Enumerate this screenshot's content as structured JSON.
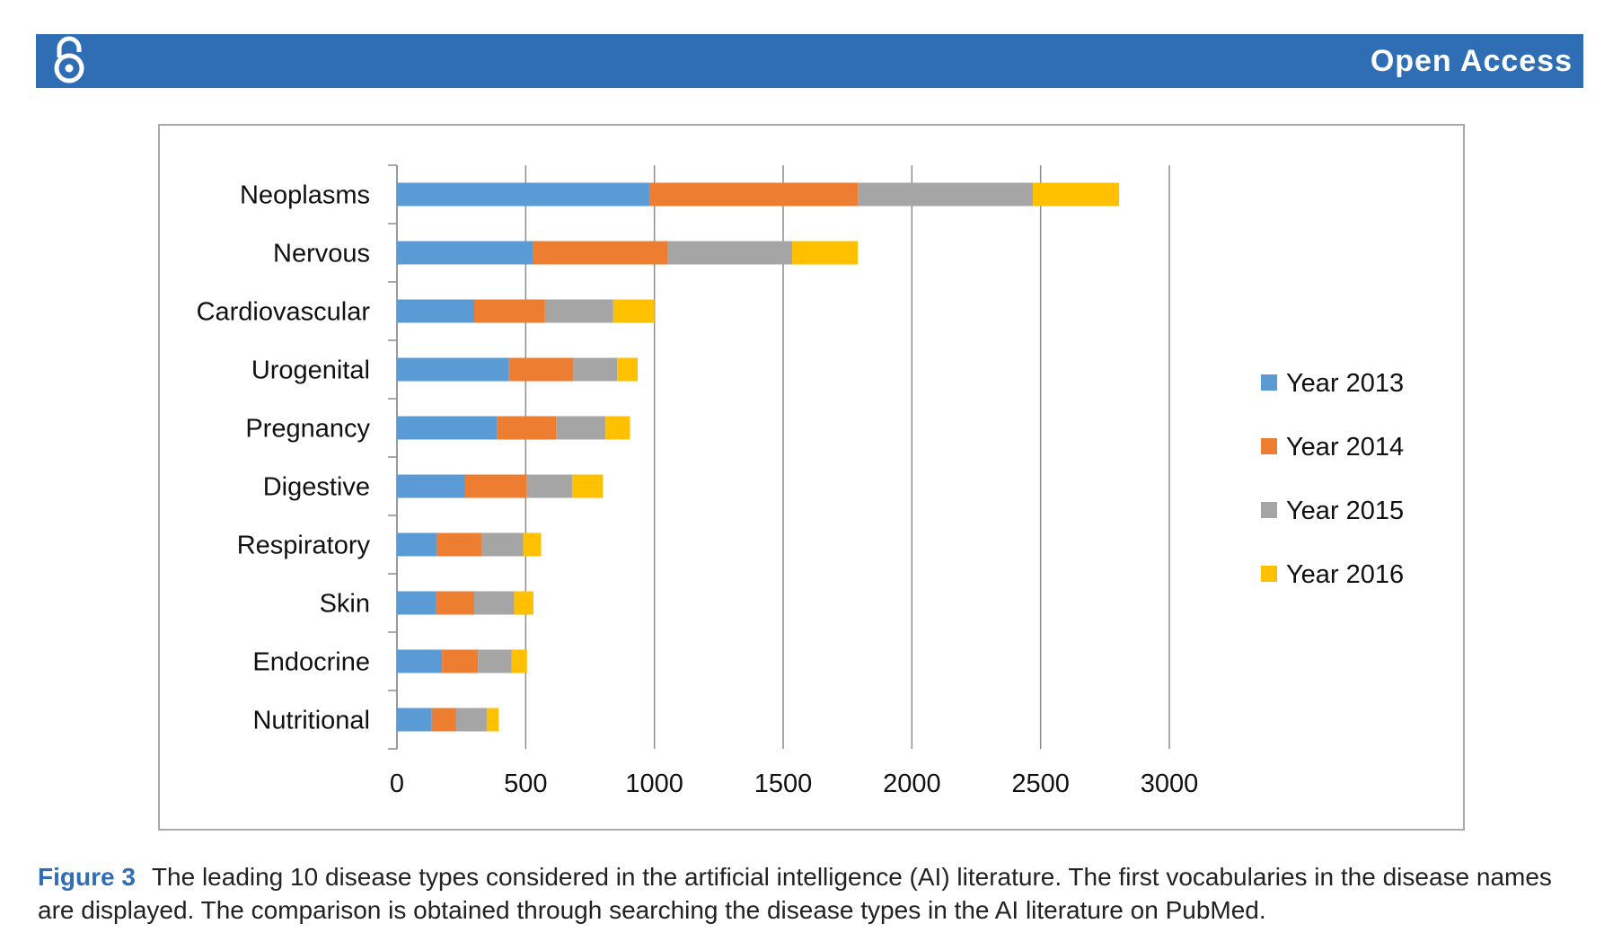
{
  "header": {
    "badge": "Open Access"
  },
  "chart_data": {
    "type": "bar",
    "orientation": "horizontal",
    "stacked": true,
    "categories": [
      "Neoplasms",
      "Nervous",
      "Cardiovascular",
      "Urogenital",
      "Pregnancy",
      "Digestive",
      "Respiratory",
      "Skin",
      "Endocrine",
      "Nutritional"
    ],
    "series": [
      {
        "name": "Year 2013",
        "color": "#5b9bd5",
        "values": [
          980,
          530,
          300,
          435,
          390,
          265,
          155,
          150,
          175,
          135
        ]
      },
      {
        "name": "Year 2014",
        "color": "#ed7d31",
        "values": [
          810,
          520,
          275,
          250,
          230,
          240,
          175,
          150,
          140,
          95
        ]
      },
      {
        "name": "Year 2015",
        "color": "#a5a5a5",
        "values": [
          680,
          485,
          265,
          170,
          190,
          175,
          160,
          155,
          130,
          120
        ]
      },
      {
        "name": "Year 2016",
        "color": "#ffc000",
        "values": [
          335,
          255,
          160,
          80,
          95,
          120,
          70,
          75,
          60,
          45
        ]
      }
    ],
    "xlim": [
      0,
      3000
    ],
    "xticks": [
      0,
      500,
      1000,
      1500,
      2000,
      2500,
      3000
    ],
    "grid": true,
    "legend": "right"
  },
  "caption": {
    "label": "Figure 3",
    "lines": [
      "The leading 10 disease types considered in the artificial intelligence (AI) literature. The first vocabularies in the",
      "disease names are displayed. The comparison is obtained through searching the disease types in the AI literature on PubMed."
    ]
  }
}
